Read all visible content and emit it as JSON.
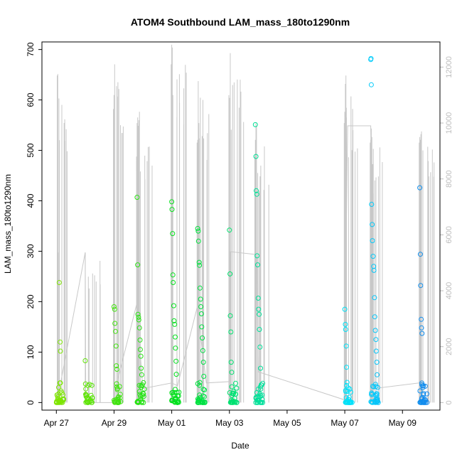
{
  "chart_data": {
    "type": "scatter",
    "title": "ATOM4 Southbound LAM_mass_180to1290nm",
    "xlabel": "Date",
    "ylabel": "LAM_mass_180to1290nm",
    "x_ticks": [
      "Apr 27",
      "Apr 29",
      "May 01",
      "May 03",
      "May 05",
      "May 07",
      "May 09"
    ],
    "x_tick_days": [
      0,
      2,
      4,
      6,
      8,
      10,
      12
    ],
    "xlim_days": [
      -0.5,
      13.3
    ],
    "ylim": [
      -15,
      715
    ],
    "y_ticks": [
      0,
      100,
      200,
      300,
      400,
      500,
      600,
      700
    ],
    "y2_ticks": [
      0,
      2000,
      4000,
      6000,
      8000,
      10000,
      12000
    ],
    "y2lim": [
      -270,
      12900
    ],
    "y2_description": "secondary series (gray line)",
    "colormap_description": "points colored by time: yellow-green (Apr 27) through green and cyan to blue (May 09)",
    "clusters": [
      {
        "day": 0.0,
        "spikes": [
          {
            "t": 0.0,
            "v": 0.0
          },
          {
            "t": 0.02,
            "v": 15.0
          },
          {
            "t": 0.03,
            "v": 0.0
          },
          {
            "t": 0.05,
            "v": 8.0
          },
          {
            "t": 0.08,
            "v": 3.0
          },
          {
            "t": 0.1,
            "v": 238.0
          },
          {
            "t": 0.12,
            "v": 20.0
          },
          {
            "t": 0.13,
            "v": 120.0
          },
          {
            "t": 0.14,
            "v": 102.0
          },
          {
            "t": 0.15,
            "v": 5.0
          }
        ],
        "y2": [
          {
            "t": 0.03,
            "v": 11700.0
          },
          {
            "t": 0.04,
            "v": 1500.0
          },
          {
            "t": 0.05,
            "v": 11750.0
          },
          {
            "t": 0.06,
            "v": 5370.0
          },
          {
            "t": 0.12,
            "v": 0.0
          }
        ]
      },
      {
        "day": 1.0,
        "spikes": [
          {
            "t": 1.0,
            "v": 83.0
          },
          {
            "t": 1.01,
            "v": 37.0
          },
          {
            "t": 1.02,
            "v": 27.0
          },
          {
            "t": 1.03,
            "v": 12.0
          },
          {
            "t": 1.05,
            "v": 2.0
          }
        ],
        "y2": [
          {
            "t": 1.0,
            "v": 5370.0
          },
          {
            "t": 1.02,
            "v": 0.0
          }
        ]
      },
      {
        "day": 2.0,
        "spikes": [
          {
            "t": 2.0,
            "v": 190.0
          },
          {
            "t": 2.02,
            "v": 185.0
          },
          {
            "t": 2.03,
            "v": 157.0
          },
          {
            "t": 2.05,
            "v": 141.0
          },
          {
            "t": 2.07,
            "v": 112.0
          },
          {
            "t": 2.08,
            "v": 73.0
          },
          {
            "t": 2.1,
            "v": 66.0
          },
          {
            "t": 2.12,
            "v": 28.0
          },
          {
            "t": 2.14,
            "v": 10.0
          },
          {
            "t": 2.16,
            "v": 0.0
          }
        ],
        "y2": [
          {
            "t": 1.98,
            "v": 10500.0
          },
          {
            "t": 2.0,
            "v": 11000.0
          },
          {
            "t": 2.02,
            "v": 12100.0
          },
          {
            "t": 2.1,
            "v": 400.0
          }
        ]
      },
      {
        "day": 2.8,
        "spikes": [
          {
            "t": 2.8,
            "v": 407.0
          },
          {
            "t": 2.82,
            "v": 273.0
          },
          {
            "t": 2.83,
            "v": 175.0
          },
          {
            "t": 2.85,
            "v": 169.0
          },
          {
            "t": 2.86,
            "v": 164.0
          },
          {
            "t": 2.88,
            "v": 148.0
          },
          {
            "t": 2.9,
            "v": 124.0
          },
          {
            "t": 2.91,
            "v": 105.0
          },
          {
            "t": 2.93,
            "v": 92.0
          },
          {
            "t": 2.94,
            "v": 68.0
          },
          {
            "t": 2.96,
            "v": 55.0
          },
          {
            "t": 2.98,
            "v": 35.0
          },
          {
            "t": 3.0,
            "v": 18.0
          },
          {
            "t": 3.02,
            "v": 0.0
          }
        ],
        "y2": [
          {
            "t": 2.78,
            "v": 8800.0
          },
          {
            "t": 2.8,
            "v": 10000.0
          },
          {
            "t": 2.82,
            "v": 10200.0
          },
          {
            "t": 2.84,
            "v": 9900.0
          },
          {
            "t": 2.86,
            "v": 10100.0
          },
          {
            "t": 2.88,
            "v": 10400.0
          }
        ]
      },
      {
        "day": 4.0,
        "spikes": [
          {
            "t": 4.0,
            "v": 398.0
          },
          {
            "t": 4.01,
            "v": 383.0
          },
          {
            "t": 4.03,
            "v": 335.0
          },
          {
            "t": 4.04,
            "v": 253.0
          },
          {
            "t": 4.05,
            "v": 238.0
          },
          {
            "t": 4.07,
            "v": 192.0
          },
          {
            "t": 4.08,
            "v": 162.0
          },
          {
            "t": 4.1,
            "v": 155.0
          },
          {
            "t": 4.12,
            "v": 130.0
          },
          {
            "t": 4.13,
            "v": 108.0
          },
          {
            "t": 4.15,
            "v": 82.0
          },
          {
            "t": 4.16,
            "v": 56.0
          },
          {
            "t": 4.18,
            "v": 20.0
          },
          {
            "t": 4.2,
            "v": 0.0
          }
        ],
        "y2": [
          {
            "t": 3.98,
            "v": 12100.0
          },
          {
            "t": 4.0,
            "v": 12800.0
          },
          {
            "t": 4.02,
            "v": 12700.0
          },
          {
            "t": 4.04,
            "v": 11000.0
          }
        ]
      },
      {
        "day": 4.9,
        "spikes": [
          {
            "t": 4.9,
            "v": 345.0
          },
          {
            "t": 4.92,
            "v": 340.0
          },
          {
            "t": 4.93,
            "v": 320.0
          },
          {
            "t": 4.95,
            "v": 278.0
          },
          {
            "t": 4.96,
            "v": 272.0
          },
          {
            "t": 4.98,
            "v": 227.0
          },
          {
            "t": 5.0,
            "v": 205.0
          },
          {
            "t": 5.01,
            "v": 190.0
          },
          {
            "t": 5.03,
            "v": 176.0
          },
          {
            "t": 5.04,
            "v": 150.0
          },
          {
            "t": 5.06,
            "v": 128.0
          },
          {
            "t": 5.08,
            "v": 103.0
          },
          {
            "t": 5.1,
            "v": 80.0
          },
          {
            "t": 5.11,
            "v": 52.0
          },
          {
            "t": 5.13,
            "v": 25.0
          },
          {
            "t": 5.15,
            "v": 0.0
          }
        ],
        "y2": [
          {
            "t": 4.88,
            "v": 9300.0
          },
          {
            "t": 4.9,
            "v": 9400.0
          },
          {
            "t": 4.92,
            "v": 11500.0
          },
          {
            "t": 4.94,
            "v": 10000.0
          }
        ]
      },
      {
        "day": 6.0,
        "spikes": [
          {
            "t": 6.0,
            "v": 342.0
          },
          {
            "t": 6.02,
            "v": 255.0
          },
          {
            "t": 6.03,
            "v": 172.0
          },
          {
            "t": 6.05,
            "v": 140.0
          },
          {
            "t": 6.06,
            "v": 80.0
          },
          {
            "t": 6.08,
            "v": 60.0
          },
          {
            "t": 6.1,
            "v": 18.0
          },
          {
            "t": 6.12,
            "v": 0.0
          }
        ],
        "y2": [
          {
            "t": 5.98,
            "v": 11000.0
          },
          {
            "t": 6.0,
            "v": 10900.0
          },
          {
            "t": 6.03,
            "v": 12500.0
          },
          {
            "t": 6.05,
            "v": 5400.0
          }
        ]
      },
      {
        "day": 6.9,
        "spikes": [
          {
            "t": 6.9,
            "v": 551.0
          },
          {
            "t": 6.92,
            "v": 488.0
          },
          {
            "t": 6.93,
            "v": 420.0
          },
          {
            "t": 6.95,
            "v": 413.0
          },
          {
            "t": 6.96,
            "v": 291.0
          },
          {
            "t": 6.98,
            "v": 273.0
          },
          {
            "t": 7.0,
            "v": 207.0
          },
          {
            "t": 7.01,
            "v": 185.0
          },
          {
            "t": 7.03,
            "v": 175.0
          },
          {
            "t": 7.04,
            "v": 145.0
          },
          {
            "t": 7.06,
            "v": 110.0
          },
          {
            "t": 7.08,
            "v": 68.0
          },
          {
            "t": 7.1,
            "v": 35.0
          },
          {
            "t": 7.11,
            "v": 0.0
          }
        ],
        "y2": [
          {
            "t": 6.88,
            "v": 8800.0
          },
          {
            "t": 6.9,
            "v": 9400.0
          },
          {
            "t": 6.92,
            "v": 10000.0
          },
          {
            "t": 6.94,
            "v": 9900.0
          }
        ]
      },
      {
        "day": 10.0,
        "spikes": [
          {
            "t": 10.0,
            "v": 185.0
          },
          {
            "t": 10.02,
            "v": 155.0
          },
          {
            "t": 10.03,
            "v": 145.0
          },
          {
            "t": 10.05,
            "v": 112.0
          },
          {
            "t": 10.06,
            "v": 70.0
          },
          {
            "t": 10.08,
            "v": 40.0
          },
          {
            "t": 10.1,
            "v": 22.0
          },
          {
            "t": 10.12,
            "v": 0.0
          }
        ],
        "y2": [
          {
            "t": 9.98,
            "v": 10000.0
          },
          {
            "t": 10.0,
            "v": 10400.0
          },
          {
            "t": 10.02,
            "v": 11400.0
          },
          {
            "t": 10.04,
            "v": 11700.0
          },
          {
            "t": 10.06,
            "v": 10200.0
          }
        ]
      },
      {
        "day": 10.9,
        "spikes": [
          {
            "t": 10.9,
            "v": 680.0
          },
          {
            "t": 10.91,
            "v": 682.0
          },
          {
            "t": 10.92,
            "v": 630.0
          },
          {
            "t": 10.93,
            "v": 393.0
          },
          {
            "t": 10.95,
            "v": 353.0
          },
          {
            "t": 10.96,
            "v": 321.0
          },
          {
            "t": 10.98,
            "v": 290.0
          },
          {
            "t": 11.0,
            "v": 270.0
          },
          {
            "t": 11.01,
            "v": 262.0
          },
          {
            "t": 11.03,
            "v": 208.0
          },
          {
            "t": 11.04,
            "v": 170.0
          },
          {
            "t": 11.06,
            "v": 143.0
          },
          {
            "t": 11.08,
            "v": 125.0
          },
          {
            "t": 11.09,
            "v": 102.0
          },
          {
            "t": 11.11,
            "v": 80.0
          },
          {
            "t": 11.12,
            "v": 55.0
          },
          {
            "t": 11.14,
            "v": 30.0
          },
          {
            "t": 11.16,
            "v": 0.0
          }
        ],
        "y2": [
          {
            "t": 10.88,
            "v": 9300.0
          },
          {
            "t": 10.9,
            "v": 9400.0
          },
          {
            "t": 10.92,
            "v": 9800.0
          },
          {
            "t": 10.94,
            "v": 9500.0
          }
        ]
      },
      {
        "day": 12.6,
        "spikes": [
          {
            "t": 12.6,
            "v": 426.0
          },
          {
            "t": 12.62,
            "v": 294.0
          },
          {
            "t": 12.63,
            "v": 232.0
          },
          {
            "t": 12.65,
            "v": 165.0
          },
          {
            "t": 12.66,
            "v": 148.0
          },
          {
            "t": 12.68,
            "v": 137.0
          },
          {
            "t": 12.7,
            "v": 33.0
          },
          {
            "t": 12.71,
            "v": 30.0
          },
          {
            "t": 12.73,
            "v": 18.0
          },
          {
            "t": 12.75,
            "v": 0.0
          }
        ],
        "y2": [
          {
            "t": 12.58,
            "v": 9300.0
          },
          {
            "t": 12.6,
            "v": 9500.0
          },
          {
            "t": 12.62,
            "v": 9400.0
          },
          {
            "t": 12.64,
            "v": 9600.0
          },
          {
            "t": 12.66,
            "v": 9700.0
          }
        ]
      }
    ],
    "y2_connectors": [
      {
        "t": 0.02,
        "v": 0.0
      },
      {
        "t": 1.0,
        "v": 5370.0
      },
      {
        "t": 1.02,
        "v": 0.0
      },
      {
        "t": 2.02,
        "v": 0.0
      },
      {
        "t": 2.05,
        "v": 500.0
      },
      {
        "t": 2.78,
        "v": 3500.0
      },
      {
        "t": 3.0,
        "v": 500.0
      },
      {
        "t": 4.0,
        "v": 700.0
      },
      {
        "t": 4.2,
        "v": 600.0
      },
      {
        "t": 4.88,
        "v": 3400.0
      },
      {
        "t": 5.2,
        "v": 700.0
      },
      {
        "t": 6.0,
        "v": 750.0
      },
      {
        "t": 6.02,
        "v": 5400.0
      },
      {
        "t": 6.88,
        "v": 5300.0
      },
      {
        "t": 6.95,
        "v": 5250.0
      },
      {
        "t": 7.0,
        "v": 1100.0
      },
      {
        "t": 9.98,
        "v": 100.0
      },
      {
        "t": 10.1,
        "v": 9900.0
      },
      {
        "t": 10.9,
        "v": 9900.0
      },
      {
        "t": 11.0,
        "v": 500.0
      },
      {
        "t": 12.58,
        "v": 700.0
      }
    ]
  }
}
